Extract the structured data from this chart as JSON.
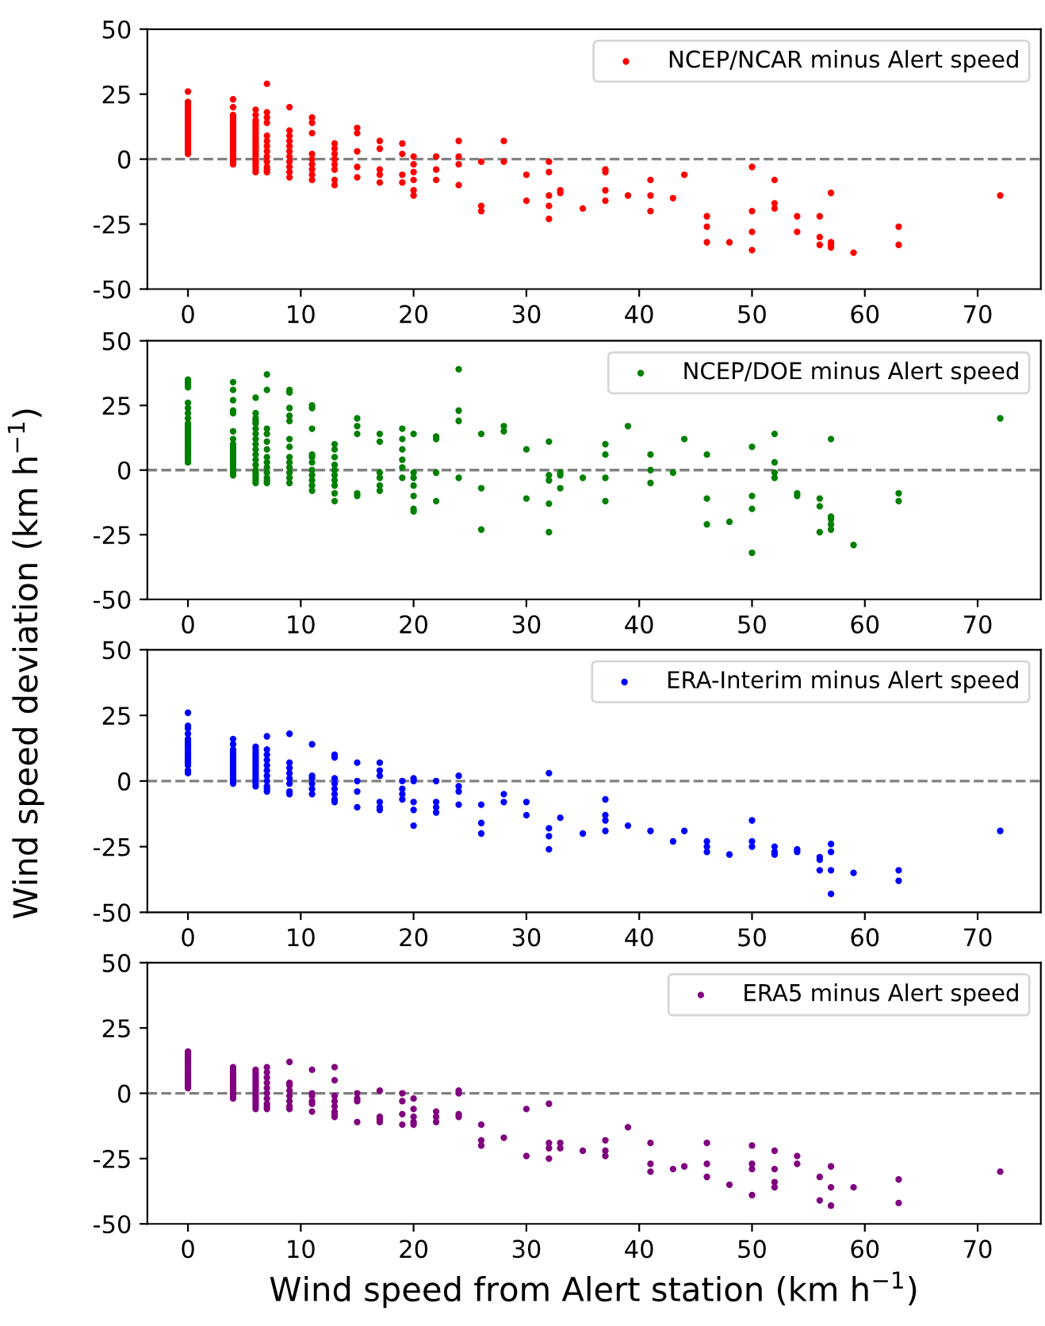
{
  "chart_data": [
    {
      "type": "scatter",
      "xlim": [
        -3.6,
        75.6
      ],
      "xticks": [
        0,
        10,
        20,
        30,
        40,
        50,
        60,
        70
      ],
      "ylim": [
        -50,
        50
      ],
      "yticks": [
        -50,
        -25,
        0,
        25,
        50
      ],
      "legend": "top right",
      "grid": false,
      "marker": "circle",
      "ref_lines": [
        {
          "axis": "y",
          "value": 0,
          "color": "#808080",
          "line_style": "dashed"
        }
      ],
      "series": [
        {
          "name": "NCEP/NCAR minus Alert speed",
          "color": "#ff0000",
          "x": [
            0,
            0,
            0,
            0,
            0,
            0,
            0,
            0,
            0,
            0,
            0,
            0,
            0,
            0,
            0,
            0,
            0,
            0,
            0,
            0,
            0,
            0,
            4,
            4,
            4,
            4,
            4,
            4,
            4,
            4,
            4,
            4,
            4,
            4,
            4,
            4,
            4,
            4,
            4,
            4,
            4,
            4,
            4,
            4,
            6,
            6,
            6,
            6,
            6,
            6,
            6,
            6,
            6,
            6,
            6,
            6,
            6,
            6,
            6,
            6,
            6,
            6,
            6,
            6,
            6,
            6,
            6,
            7,
            7,
            7,
            7,
            7,
            7,
            7,
            7,
            7,
            7,
            7,
            7,
            7,
            9,
            9,
            9,
            9,
            9,
            9,
            9,
            9,
            9,
            9,
            9,
            11,
            11,
            11,
            11,
            11,
            11,
            11,
            11,
            11,
            13,
            13,
            13,
            13,
            13,
            13,
            13,
            13,
            15,
            15,
            15,
            15,
            15,
            17,
            17,
            17,
            17,
            17,
            19,
            19,
            19,
            19,
            20,
            20,
            20,
            20,
            20,
            20,
            22,
            22,
            22,
            24,
            24,
            24,
            24,
            26,
            26,
            26,
            28,
            28,
            30,
            30,
            32,
            32,
            32,
            32,
            32,
            33,
            33,
            35,
            37,
            37,
            37,
            37,
            39,
            41,
            41,
            41,
            43,
            44,
            46,
            46,
            46,
            48,
            50,
            50,
            50,
            50,
            52,
            52,
            52,
            54,
            54,
            56,
            56,
            56,
            57,
            57,
            57,
            57,
            59,
            63,
            63,
            72
          ],
          "values": [
            2,
            3,
            4,
            5,
            6,
            7,
            8,
            9,
            10,
            11,
            12,
            13,
            14,
            15,
            16,
            17,
            18,
            19,
            20,
            21,
            22,
            26,
            -2,
            -1,
            0,
            1,
            2,
            3,
            4,
            5,
            6,
            7,
            8,
            9,
            10,
            11,
            12,
            13,
            14,
            15,
            16,
            17,
            20,
            23,
            -5,
            -4,
            -3,
            -2,
            -1,
            0,
            1,
            2,
            3,
            4,
            5,
            6,
            7,
            8,
            9,
            10,
            11,
            12,
            13,
            14,
            15,
            17,
            19,
            -5,
            -4,
            -3,
            -1,
            1,
            3,
            5,
            7,
            9,
            14,
            16,
            18,
            29,
            -7,
            -5,
            -3,
            -1,
            1,
            3,
            5,
            7,
            9,
            11,
            20,
            -8,
            -6,
            -4,
            -2,
            0,
            2,
            10,
            14,
            16,
            -10,
            -8,
            -4,
            -2,
            0,
            2,
            4,
            6,
            -7,
            -3,
            3,
            10,
            12,
            -9,
            -6,
            -4,
            4,
            7,
            -9,
            -6,
            2,
            6,
            -14,
            -12,
            -8,
            -5,
            -2,
            1,
            -8,
            -4,
            1,
            -10,
            -2,
            1,
            7,
            -20,
            -18,
            -1,
            -1,
            7,
            -16,
            -6,
            -23,
            -18,
            -14,
            -5,
            -1,
            -13,
            -12,
            -19,
            -16,
            -12,
            -5,
            -4,
            -14,
            -20,
            -14,
            -8,
            -15,
            -6,
            -32,
            -26,
            -22,
            -32,
            -35,
            -28,
            -20,
            -3,
            -19,
            -17,
            -8,
            -28,
            -22,
            -33,
            -30,
            -22,
            -34,
            -33,
            -32,
            -13,
            -36,
            -33,
            -26,
            -14
          ]
        }
      ]
    },
    {
      "type": "scatter",
      "xlim": [
        -3.6,
        75.6
      ],
      "xticks": [
        0,
        10,
        20,
        30,
        40,
        50,
        60,
        70
      ],
      "ylim": [
        -50,
        50
      ],
      "yticks": [
        -50,
        -25,
        0,
        25,
        50
      ],
      "legend": "top right",
      "grid": false,
      "marker": "circle",
      "ylabel": "Wind speed deviation (km h$^{−1}$)",
      "ref_lines": [
        {
          "axis": "y",
          "value": 0,
          "color": "#808080",
          "line_style": "dashed"
        }
      ],
      "series": [
        {
          "name": "NCEP/DOE minus Alert speed",
          "color": "#008000",
          "x": [
            0,
            0,
            0,
            0,
            0,
            0,
            0,
            0,
            0,
            0,
            0,
            0,
            0,
            0,
            0,
            0,
            0,
            0,
            0,
            0,
            0,
            0,
            0,
            0,
            4,
            4,
            4,
            4,
            4,
            4,
            4,
            4,
            4,
            4,
            4,
            4,
            4,
            4,
            4,
            4,
            4,
            4,
            4,
            4,
            6,
            6,
            6,
            6,
            6,
            6,
            6,
            6,
            6,
            6,
            6,
            6,
            6,
            6,
            6,
            6,
            6,
            6,
            6,
            7,
            7,
            7,
            7,
            7,
            7,
            7,
            7,
            7,
            7,
            7,
            7,
            7,
            9,
            9,
            9,
            9,
            9,
            9,
            9,
            9,
            9,
            9,
            9,
            9,
            9,
            11,
            11,
            11,
            11,
            11,
            11,
            11,
            11,
            11,
            11,
            11,
            13,
            13,
            13,
            13,
            13,
            13,
            13,
            13,
            13,
            13,
            15,
            15,
            15,
            15,
            15,
            17,
            17,
            17,
            17,
            17,
            17,
            19,
            19,
            19,
            19,
            19,
            19,
            20,
            20,
            20,
            20,
            20,
            20,
            20,
            22,
            22,
            22,
            22,
            24,
            24,
            24,
            24,
            26,
            26,
            26,
            28,
            28,
            30,
            30,
            32,
            32,
            32,
            32,
            32,
            33,
            33,
            33,
            35,
            37,
            37,
            37,
            37,
            39,
            41,
            41,
            41,
            43,
            44,
            46,
            46,
            46,
            48,
            50,
            50,
            50,
            50,
            52,
            52,
            52,
            52,
            54,
            54,
            56,
            56,
            56,
            57,
            57,
            57,
            57,
            57,
            59,
            63,
            63,
            72
          ],
          "values": [
            3,
            4,
            5,
            6,
            7,
            8,
            9,
            10,
            11,
            12,
            13,
            14,
            15,
            16,
            17,
            18,
            20,
            22,
            24,
            26,
            32,
            33,
            34,
            35,
            -2,
            -1,
            0,
            1,
            2,
            3,
            4,
            5,
            6,
            7,
            8,
            9,
            10,
            12,
            15,
            22,
            23,
            27,
            31,
            34,
            -5,
            -4,
            -3,
            -2,
            -1,
            0,
            2,
            4,
            6,
            8,
            10,
            12,
            14,
            16,
            18,
            19,
            20,
            22,
            28,
            -5,
            -4,
            -3,
            -1,
            1,
            3,
            5,
            8,
            11,
            14,
            16,
            31,
            37,
            -5,
            -3,
            -1,
            1,
            3,
            5,
            9,
            12,
            19,
            21,
            24,
            30,
            31,
            -8,
            -6,
            -4,
            -2,
            0,
            3,
            5,
            6,
            16,
            24,
            25,
            -12,
            -9,
            -6,
            -4,
            -2,
            0,
            2,
            5,
            8,
            10,
            -10,
            -9,
            14,
            17,
            20,
            -8,
            -6,
            -3,
            -1,
            11,
            14,
            -3,
            1,
            4,
            8,
            12,
            16,
            -16,
            -15,
            -10,
            -6,
            -3,
            -1,
            14,
            -12,
            -1,
            12,
            13,
            -3,
            19,
            23,
            39,
            -23,
            -7,
            14,
            15,
            17,
            -11,
            8,
            -24,
            -13,
            -4,
            -2,
            11,
            -7,
            -2,
            -1,
            -3,
            -12,
            -3,
            6,
            10,
            17,
            -5,
            0,
            6,
            -1,
            12,
            -21,
            -11,
            6,
            -20,
            -32,
            -15,
            -10,
            9,
            -3,
            -1,
            3,
            14,
            -10,
            -9,
            -24,
            -14,
            -11,
            -23,
            -21,
            -19,
            -18,
            12,
            -29,
            -12,
            -9,
            20
          ]
        }
      ]
    },
    {
      "type": "scatter",
      "xlim": [
        -3.6,
        75.6
      ],
      "xticks": [
        0,
        10,
        20,
        30,
        40,
        50,
        60,
        70
      ],
      "ylim": [
        -50,
        50
      ],
      "yticks": [
        -50,
        -25,
        0,
        25,
        50
      ],
      "legend": "top right",
      "grid": false,
      "marker": "circle",
      "ref_lines": [
        {
          "axis": "y",
          "value": 0,
          "color": "#808080",
          "line_style": "dashed"
        }
      ],
      "series": [
        {
          "name": "ERA-Interim minus Alert speed",
          "color": "#0000ff",
          "x": [
            0,
            0,
            0,
            0,
            0,
            0,
            0,
            0,
            0,
            0,
            0,
            0,
            0,
            0,
            0,
            0,
            0,
            4,
            4,
            4,
            4,
            4,
            4,
            4,
            4,
            4,
            4,
            4,
            4,
            4,
            4,
            4,
            4,
            6,
            6,
            6,
            6,
            6,
            6,
            6,
            6,
            6,
            6,
            6,
            6,
            6,
            6,
            6,
            6,
            7,
            7,
            7,
            7,
            7,
            7,
            7,
            7,
            7,
            7,
            7,
            9,
            9,
            9,
            9,
            9,
            9,
            9,
            9,
            11,
            11,
            11,
            11,
            11,
            11,
            13,
            13,
            13,
            13,
            13,
            13,
            13,
            13,
            15,
            15,
            15,
            15,
            17,
            17,
            17,
            17,
            17,
            17,
            19,
            19,
            19,
            19,
            20,
            20,
            20,
            20,
            20,
            22,
            22,
            22,
            22,
            24,
            24,
            24,
            24,
            26,
            26,
            26,
            28,
            28,
            30,
            30,
            32,
            32,
            32,
            32,
            33,
            35,
            37,
            37,
            37,
            37,
            39,
            41,
            43,
            44,
            46,
            46,
            46,
            48,
            50,
            50,
            50,
            52,
            52,
            52,
            54,
            54,
            56,
            56,
            56,
            57,
            57,
            57,
            57,
            59,
            63,
            63,
            72
          ],
          "values": [
            3,
            4,
            6,
            7,
            8,
            9,
            10,
            11,
            12,
            13,
            14,
            15,
            16,
            18,
            20,
            21,
            26,
            -1,
            0,
            1,
            2,
            3,
            4,
            5,
            6,
            7,
            8,
            9,
            10,
            11,
            12,
            14,
            16,
            -2,
            -1,
            0,
            1,
            2,
            3,
            4,
            5,
            6,
            7,
            8,
            9,
            10,
            11,
            12,
            13,
            -4,
            -3,
            -2,
            0,
            2,
            4,
            6,
            8,
            10,
            12,
            17,
            -5,
            -4,
            -1,
            1,
            3,
            5,
            7,
            18,
            -5,
            -3,
            -1,
            1,
            2,
            14,
            -8,
            -7,
            -5,
            -3,
            -1,
            1,
            9,
            10,
            -10,
            -4,
            0,
            7,
            -11,
            -10,
            -8,
            2,
            4,
            7,
            -7,
            -5,
            -3,
            0,
            -17,
            -11,
            -8,
            0,
            1,
            -12,
            -10,
            -8,
            0,
            -9,
            -4,
            -2,
            2,
            -20,
            -16,
            -9,
            -8,
            -5,
            -13,
            -8,
            -26,
            -21,
            -18,
            3,
            -14,
            -20,
            -19,
            -15,
            -13,
            -7,
            -17,
            -19,
            -23,
            -19,
            -27,
            -25,
            -23,
            -28,
            -25,
            -23,
            -15,
            -28,
            -27,
            -25,
            -27,
            -26,
            -34,
            -30,
            -29,
            -43,
            -34,
            -27,
            -24,
            -35,
            -38,
            -34,
            -19
          ]
        }
      ]
    },
    {
      "type": "scatter",
      "xlim": [
        -3.6,
        75.6
      ],
      "xticks": [
        0,
        10,
        20,
        30,
        40,
        50,
        60,
        70
      ],
      "ylim": [
        -50,
        50
      ],
      "yticks": [
        -50,
        -25,
        0,
        25,
        50
      ],
      "legend": "top right",
      "grid": false,
      "marker": "circle",
      "xlabel": "Wind speed from Alert station (km h$^{−1}$)",
      "ref_lines": [
        {
          "axis": "y",
          "value": 0,
          "color": "#808080",
          "line_style": "dashed"
        }
      ],
      "series": [
        {
          "name": "ERA5 minus Alert speed",
          "color": "#800080",
          "x": [
            0,
            0,
            0,
            0,
            0,
            0,
            0,
            0,
            0,
            0,
            0,
            0,
            0,
            0,
            0,
            4,
            4,
            4,
            4,
            4,
            4,
            4,
            4,
            4,
            4,
            4,
            4,
            4,
            6,
            6,
            6,
            6,
            6,
            6,
            6,
            6,
            6,
            6,
            6,
            6,
            6,
            6,
            6,
            6,
            7,
            7,
            7,
            7,
            7,
            7,
            7,
            7,
            7,
            7,
            9,
            9,
            9,
            9,
            9,
            9,
            9,
            9,
            11,
            11,
            11,
            11,
            11,
            11,
            13,
            13,
            13,
            13,
            13,
            13,
            13,
            13,
            15,
            15,
            15,
            15,
            17,
            17,
            17,
            17,
            19,
            19,
            19,
            19,
            20,
            20,
            20,
            20,
            20,
            22,
            22,
            22,
            24,
            24,
            24,
            24,
            26,
            26,
            26,
            28,
            30,
            30,
            32,
            32,
            32,
            32,
            33,
            33,
            35,
            37,
            37,
            37,
            39,
            41,
            41,
            41,
            43,
            44,
            46,
            46,
            46,
            48,
            50,
            50,
            50,
            50,
            52,
            52,
            52,
            52,
            54,
            54,
            56,
            56,
            57,
            57,
            57,
            59,
            63,
            63,
            72
          ],
          "values": [
            2,
            3,
            4,
            5,
            6,
            7,
            8,
            9,
            10,
            11,
            12,
            13,
            14,
            15,
            16,
            -2,
            -1,
            0,
            1,
            2,
            3,
            4,
            5,
            6,
            7,
            8,
            9,
            10,
            -6,
            -5,
            -4,
            -3,
            -2,
            -1,
            0,
            1,
            2,
            3,
            4,
            5,
            6,
            7,
            8,
            9,
            -6,
            -5,
            -4,
            -2,
            0,
            2,
            4,
            6,
            8,
            10,
            -6,
            -5,
            -3,
            -1,
            1,
            3,
            4,
            12,
            -7,
            -4,
            -3,
            -1,
            0,
            9,
            -9,
            -8,
            -7,
            -5,
            -3,
            -1,
            5,
            10,
            -11,
            -3,
            -2,
            0,
            -11,
            -10,
            -9,
            1,
            -12,
            -8,
            -3,
            0,
            -12,
            -11,
            -9,
            -6,
            -2,
            -11,
            -9,
            -7,
            -9,
            -8,
            0,
            1,
            -20,
            -18,
            -12,
            -17,
            -24,
            -6,
            -25,
            -21,
            -19,
            -4,
            -21,
            -19,
            -22,
            -24,
            -22,
            -18,
            -13,
            -30,
            -27,
            -19,
            -29,
            -28,
            -32,
            -27,
            -19,
            -35,
            -39,
            -29,
            -27,
            -20,
            -36,
            -34,
            -29,
            -22,
            -27,
            -24,
            -41,
            -32,
            -43,
            -36,
            -28,
            -36,
            -42,
            -33,
            -30
          ]
        }
      ]
    }
  ]
}
